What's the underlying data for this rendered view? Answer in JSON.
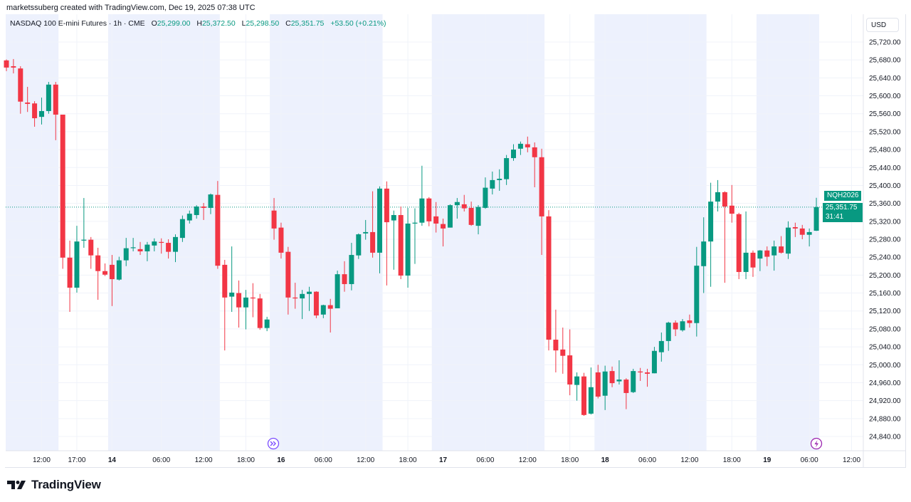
{
  "attribution": "marketssuberg created with TradingView.com, Dec 19, 2025 07:38 UTC",
  "legend": {
    "symbol": "NASDAQ 100 E-mini Futures · 1h · CME",
    "open_label": "O",
    "open": "25,299.00",
    "high_label": "H",
    "high": "25,372.50",
    "low_label": "L",
    "low": "25,298.50",
    "close_label": "C",
    "close": "25,351.75",
    "change": "+53.50 (+0.21%)"
  },
  "currency": "USD",
  "last_price": {
    "ticker": "NQH2026",
    "price": "25,351.75",
    "countdown": "31:41"
  },
  "footer": {
    "logo_text": "TradingView"
  },
  "icons": {
    "event_1": "fast-forward-circle-icon",
    "event_2": "lightning-circle-icon"
  },
  "colors": {
    "up": "#089981",
    "down": "#f23645",
    "session_shade": "#edf1fd",
    "event_icon": "#9c27b0",
    "event_icon_1": "#7b4dff"
  },
  "chart_data": {
    "type": "candlestick",
    "title": "",
    "ylim": [
      24820,
      25740
    ],
    "grid": true,
    "current_price": 25351.75,
    "y_ticks": [
      "24,840.00",
      "24,880.00",
      "24,920.00",
      "24,960.00",
      "25,000.00",
      "25,040.00",
      "25,080.00",
      "25,120.00",
      "25,160.00",
      "25,200.00",
      "25,240.00",
      "25,280.00",
      "25,320.00",
      "25,360.00",
      "25,400.00",
      "25,440.00",
      "25,480.00",
      "25,520.00",
      "25,560.00",
      "25,600.00",
      "25,640.00",
      "25,680.00",
      "25,720.00"
    ],
    "x_ticks": [
      {
        "label": "12:00",
        "i": 5,
        "day": false
      },
      {
        "label": "17:00",
        "i": 10,
        "day": false
      },
      {
        "label": "14",
        "i": 15,
        "day": true
      },
      {
        "label": "06:00",
        "i": 22,
        "day": false
      },
      {
        "label": "12:00",
        "i": 28,
        "day": false
      },
      {
        "label": "18:00",
        "i": 34,
        "day": false
      },
      {
        "label": "16",
        "i": 39,
        "day": true
      },
      {
        "label": "06:00",
        "i": 45,
        "day": false
      },
      {
        "label": "12:00",
        "i": 51,
        "day": false
      },
      {
        "label": "18:00",
        "i": 57,
        "day": false
      },
      {
        "label": "17",
        "i": 62,
        "day": true
      },
      {
        "label": "06:00",
        "i": 68,
        "day": false
      },
      {
        "label": "12:00",
        "i": 74,
        "day": false
      },
      {
        "label": "18:00",
        "i": 80,
        "day": false
      },
      {
        "label": "18",
        "i": 85,
        "day": true
      },
      {
        "label": "06:00",
        "i": 91,
        "day": false
      },
      {
        "label": "12:00",
        "i": 97,
        "day": false
      },
      {
        "label": "18:00",
        "i": 103,
        "day": false
      },
      {
        "label": "19",
        "i": 108,
        "day": true
      },
      {
        "label": "06:00",
        "i": 114,
        "day": false
      },
      {
        "label": "12:00",
        "i": 120,
        "day": false
      }
    ],
    "ohlc_fields": [
      "open",
      "high",
      "low",
      "close"
    ],
    "candles": [
      [
        25679,
        25681,
        25655,
        25663
      ],
      [
        25666,
        25682,
        25650,
        25663
      ],
      [
        25661,
        25666,
        25560,
        25587
      ],
      [
        25585,
        25620,
        25564,
        25582
      ],
      [
        25583,
        25588,
        25531,
        25550
      ],
      [
        25553,
        25596,
        25536,
        25566
      ],
      [
        25566,
        25631,
        25560,
        25625
      ],
      [
        25625,
        25631,
        25501,
        25558
      ],
      [
        25558,
        25558,
        25214,
        25239
      ],
      [
        25239,
        25277,
        25118,
        25172
      ],
      [
        25172,
        25310,
        25161,
        25275
      ],
      [
        25277,
        25372,
        25261,
        25279
      ],
      [
        25279,
        25285,
        25214,
        25244
      ],
      [
        25244,
        25261,
        25145,
        25209
      ],
      [
        25209,
        25226,
        25198,
        25201
      ],
      [
        25223,
        25245,
        25131,
        25191
      ],
      [
        25190,
        25241,
        25188,
        25233
      ],
      [
        25233,
        25283,
        25220,
        25260
      ],
      [
        25261,
        25283,
        25253,
        25262
      ],
      [
        25258,
        25274,
        25245,
        25253
      ],
      [
        25253,
        25274,
        25231,
        25268
      ],
      [
        25266,
        25282,
        25253,
        25275
      ],
      [
        25274,
        25282,
        25248,
        25272
      ],
      [
        25272,
        25280,
        25237,
        25252
      ],
      [
        25252,
        25291,
        25229,
        25285
      ],
      [
        25283,
        25333,
        25274,
        25325
      ],
      [
        25322,
        25344,
        25315,
        25337
      ],
      [
        25334,
        25356,
        25326,
        25353
      ],
      [
        25353,
        25361,
        25323,
        25350
      ],
      [
        25350,
        25382,
        25336,
        25380
      ],
      [
        25379,
        25410,
        25214,
        25221
      ],
      [
        25223,
        25234,
        25032,
        25150
      ],
      [
        25152,
        25264,
        25118,
        25161
      ],
      [
        25160,
        25188,
        25083,
        25128
      ],
      [
        25128,
        25167,
        25079,
        25150
      ],
      [
        25150,
        25182,
        25106,
        25148
      ],
      [
        25148,
        25158,
        25078,
        25082
      ],
      [
        25082,
        25107,
        25075,
        25101
      ],
      [
        25344,
        25372,
        25279,
        25304
      ],
      [
        25306,
        25317,
        25237,
        25250
      ],
      [
        25252,
        25263,
        25112,
        25150
      ],
      [
        25150,
        25183,
        25125,
        25148
      ],
      [
        25148,
        25167,
        25102,
        25158
      ],
      [
        25158,
        25174,
        25120,
        25163
      ],
      [
        25163,
        25164,
        25104,
        25110
      ],
      [
        25112,
        25134,
        25104,
        25133
      ],
      [
        25133,
        25147,
        25072,
        25125
      ],
      [
        25126,
        25210,
        25126,
        25202
      ],
      [
        25202,
        25231,
        25163,
        25180
      ],
      [
        25180,
        25272,
        25166,
        25245
      ],
      [
        25244,
        25293,
        25236,
        25291
      ],
      [
        25293,
        25323,
        25279,
        25296
      ],
      [
        25296,
        25387,
        25239,
        25250
      ],
      [
        25250,
        25398,
        25204,
        25393
      ],
      [
        25393,
        25409,
        25177,
        25318
      ],
      [
        25322,
        25344,
        25212,
        25334
      ],
      [
        25334,
        25353,
        25191,
        25199
      ],
      [
        25199,
        25350,
        25172,
        25315
      ],
      [
        25315,
        25349,
        25225,
        25317
      ],
      [
        25317,
        25444,
        25310,
        25371
      ],
      [
        25371,
        25374,
        25309,
        25320
      ],
      [
        25331,
        25363,
        25295,
        25315
      ],
      [
        25314,
        25326,
        25264,
        25304
      ],
      [
        25306,
        25358,
        25306,
        25356
      ],
      [
        25356,
        25372,
        25326,
        25363
      ],
      [
        25358,
        25379,
        25342,
        25349
      ],
      [
        25350,
        25364,
        25310,
        25312
      ],
      [
        25310,
        25356,
        25291,
        25352
      ],
      [
        25350,
        25418,
        25348,
        25395
      ],
      [
        25393,
        25431,
        25380,
        25412
      ],
      [
        25412,
        25436,
        25388,
        25415
      ],
      [
        25414,
        25468,
        25401,
        25461
      ],
      [
        25461,
        25492,
        25455,
        25480
      ],
      [
        25482,
        25498,
        25468,
        25493
      ],
      [
        25492,
        25509,
        25474,
        25485
      ],
      [
        25485,
        25496,
        25396,
        25463
      ],
      [
        25463,
        25482,
        25245,
        25331
      ],
      [
        25331,
        25345,
        25032,
        25056
      ],
      [
        25056,
        25123,
        24983,
        25032
      ],
      [
        25034,
        25083,
        24980,
        25020
      ],
      [
        25021,
        25079,
        24932,
        24956
      ],
      [
        24955,
        24983,
        24920,
        24974
      ],
      [
        24974,
        24982,
        24886,
        24888
      ],
      [
        24891,
        24994,
        24889,
        24950
      ],
      [
        24983,
        25000,
        24925,
        24929
      ],
      [
        24931,
        24998,
        24899,
        24985
      ],
      [
        24986,
        24996,
        24950,
        24959
      ],
      [
        24963,
        25010,
        24956,
        24967
      ],
      [
        24967,
        24970,
        24901,
        24937
      ],
      [
        24939,
        24991,
        24937,
        24986
      ],
      [
        24985,
        24993,
        24964,
        24983
      ],
      [
        24983,
        24991,
        24951,
        24980
      ],
      [
        24981,
        25040,
        24981,
        25031
      ],
      [
        25028,
        25072,
        25007,
        25053
      ],
      [
        25053,
        25096,
        25031,
        25094
      ],
      [
        25094,
        25099,
        25064,
        25079
      ],
      [
        25077,
        25102,
        25074,
        25097
      ],
      [
        25099,
        25112,
        25083,
        25093
      ],
      [
        25093,
        25263,
        25063,
        25221
      ],
      [
        25220,
        25329,
        25160,
        25275
      ],
      [
        25275,
        25406,
        25174,
        25364
      ],
      [
        25364,
        25412,
        25342,
        25385
      ],
      [
        25385,
        25387,
        25183,
        25353
      ],
      [
        25355,
        25401,
        25317,
        25337
      ],
      [
        25336,
        25339,
        25191,
        25207
      ],
      [
        25207,
        25342,
        25191,
        25250
      ],
      [
        25250,
        25255,
        25196,
        25217
      ],
      [
        25237,
        25256,
        25209,
        25255
      ],
      [
        25255,
        25264,
        25220,
        25241
      ],
      [
        25244,
        25277,
        25210,
        25264
      ],
      [
        25264,
        25287,
        25248,
        25250
      ],
      [
        25248,
        25320,
        25236,
        25306
      ],
      [
        25307,
        25317,
        25285,
        25304
      ],
      [
        25304,
        25312,
        25280,
        25290
      ],
      [
        25290,
        25304,
        25264,
        25296
      ],
      [
        25299,
        25372.5,
        25298.5,
        25351.75
      ]
    ]
  }
}
